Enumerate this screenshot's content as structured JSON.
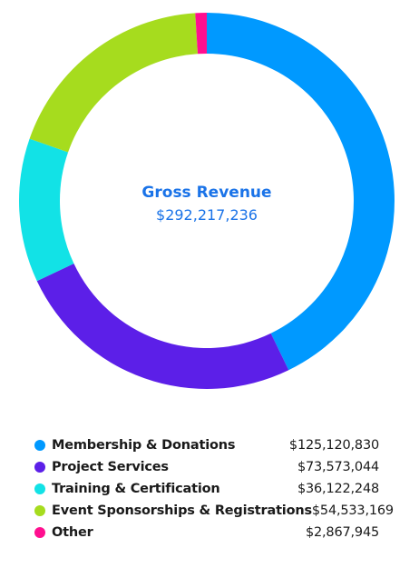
{
  "chart_data": {
    "type": "pie",
    "center_title": "Gross Revenue",
    "center_value": "$292,217,236",
    "legend_placement": "bottom",
    "slices": [
      {
        "name": "Membership & Donations",
        "value": 125120830,
        "label": "$125,120,830",
        "color": "#0099ff"
      },
      {
        "name": "Project Services",
        "value": 73573044,
        "label": "$73,573,044",
        "color": "#5c1fe8"
      },
      {
        "name": "Training & Certification",
        "value": 36122248,
        "label": "$36,122,248",
        "color": "#12e2e6"
      },
      {
        "name": "Event Sponsorships & Registrations",
        "value": 54533169,
        "label": "$54,533,169",
        "color": "#a6dc1e"
      },
      {
        "name": "Other",
        "value": 2867945,
        "label": "$2,867,945",
        "color": "#ff0f8f"
      }
    ]
  }
}
